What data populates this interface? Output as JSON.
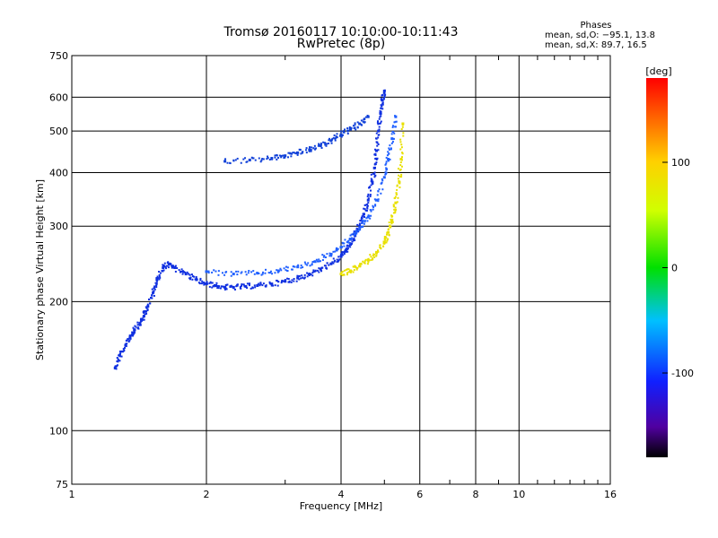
{
  "chart_data": {
    "type": "scatter",
    "title": "Tromsø 20160117 10:10:00-10:11:43",
    "subtitle": "RwPretec (8p)",
    "xlabel": "Frequency [MHz]",
    "ylabel": "Stationary phase Virtual Height [km]",
    "xscale": "log",
    "yscale": "log",
    "xlim": [
      1,
      16
    ],
    "ylim": [
      75,
      750
    ],
    "xticks": [
      1,
      2,
      4,
      6,
      8,
      10,
      16
    ],
    "xtick_labels": [
      "1",
      "2",
      "4",
      "6",
      "8",
      "10",
      "16"
    ],
    "yticks": [
      75,
      100,
      200,
      300,
      400,
      500,
      600,
      750
    ],
    "ytick_labels": [
      "75",
      "100",
      "200",
      "300",
      "400",
      "500",
      "600",
      "750"
    ],
    "grid": true,
    "phase_box": {
      "heading": "Phases",
      "line_o": "mean, sd,O: −95.1, 13.8",
      "line_x": "mean, sd,X:  89.7, 16.5"
    },
    "colorbar": {
      "label": "[deg]",
      "range": [
        -180,
        180
      ],
      "ticks": [
        100,
        0,
        -100
      ],
      "tick_labels": [
        "100",
        "0",
        "-100"
      ]
    },
    "series": [
      {
        "mode": "O",
        "color": "#1030e0",
        "x": [
          1.25,
          1.28,
          1.32,
          1.35,
          1.38,
          1.42,
          1.45,
          1.48,
          1.52,
          1.55,
          1.6,
          1.65,
          1.7,
          1.8,
          1.9,
          2.0,
          2.1,
          2.2,
          2.3,
          2.45,
          2.6,
          2.8,
          3.0,
          3.2,
          3.4,
          3.6,
          3.8,
          4.0,
          4.1,
          4.2,
          4.3,
          4.4,
          4.5,
          4.6,
          4.7,
          4.75,
          4.8,
          4.85,
          4.9,
          4.95,
          5.0
        ],
        "y": [
          140,
          150,
          158,
          165,
          172,
          178,
          185,
          195,
          210,
          225,
          240,
          245,
          240,
          232,
          225,
          220,
          218,
          216,
          216,
          217,
          218,
          220,
          223,
          227,
          232,
          238,
          245,
          255,
          262,
          272,
          285,
          300,
          320,
          345,
          380,
          410,
          450,
          500,
          550,
          590,
          620
        ]
      },
      {
        "mode": "O-upper",
        "color": "#1040d8",
        "x": [
          2.2,
          2.5,
          2.8,
          3.0,
          3.2,
          3.4,
          3.6,
          3.8,
          4.0,
          4.2,
          4.4,
          4.6
        ],
        "y": [
          425,
          428,
          432,
          438,
          445,
          452,
          462,
          475,
          490,
          505,
          520,
          540
        ]
      },
      {
        "mode": "X",
        "color": "#2060ff",
        "x": [
          2.0,
          2.3,
          2.6,
          2.9,
          3.2,
          3.5,
          3.8,
          4.0,
          4.2,
          4.4,
          4.6,
          4.8,
          5.0,
          5.1,
          5.2,
          5.3
        ],
        "y": [
          235,
          232,
          233,
          236,
          241,
          248,
          258,
          268,
          280,
          295,
          315,
          345,
          390,
          430,
          480,
          540
        ]
      },
      {
        "mode": "X-yellow",
        "color": "#e8e000",
        "x": [
          4.0,
          4.2,
          4.4,
          4.6,
          4.8,
          5.0,
          5.1,
          5.2,
          5.3,
          5.4,
          5.45,
          5.5
        ],
        "y": [
          232,
          236,
          242,
          250,
          260,
          275,
          290,
          310,
          340,
          380,
          430,
          520
        ]
      }
    ]
  }
}
